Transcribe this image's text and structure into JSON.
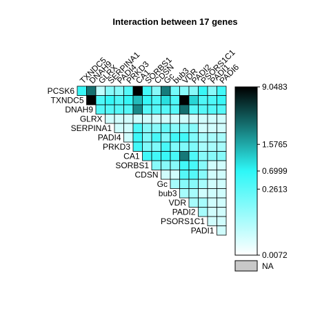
{
  "chart_data": {
    "type": "heatmap",
    "title": "Interaction between 17 genes",
    "row_labels": [
      "PCSK6",
      "TXNDC5",
      "DNAH9",
      "GLRX",
      "SERPINA1",
      "PADI4",
      "PRKD3",
      "CA1",
      "SORBS1",
      "CDSN",
      "Gc",
      "bub3",
      "VDR",
      "PADI2",
      "PSORS1C1",
      "PADI1"
    ],
    "col_labels": [
      "TXNDC5",
      "DNAH9",
      "GLRX",
      "SERPINA1",
      "PADI4",
      "PRKD3",
      "CA1",
      "SORBS1",
      "CDSN",
      "Gc",
      "bub3",
      "VDR",
      "PADI2",
      "PSORS1C1",
      "PADI1",
      "PADI6"
    ],
    "matrix": [
      [
        0.55,
        2.8,
        0.03,
        0.1,
        0.1,
        0.3,
        9.0,
        0.45,
        0.1,
        2.5,
        0.15,
        0.1,
        0.1,
        0.55,
        0.1,
        0.45
      ],
      [
        null,
        9.0,
        0.35,
        0.6,
        0.35,
        0.6,
        1.3,
        0.6,
        0.35,
        0.9,
        0.35,
        9.0,
        1.0,
        0.35,
        0.35,
        0.55
      ],
      [
        null,
        null,
        0.3,
        0.3,
        0.3,
        0.3,
        2.2,
        0.3,
        0.3,
        0.3,
        0.3,
        2.9,
        0.3,
        0.3,
        0.3,
        0.3
      ],
      [
        null,
        null,
        null,
        0.02,
        0.02,
        0.02,
        0.02,
        0.02,
        0.02,
        0.02,
        0.02,
        0.02,
        0.02,
        0.02,
        0.02,
        0.02
      ],
      [
        null,
        null,
        null,
        null,
        0.02,
        0.02,
        0.35,
        0.1,
        0.1,
        0.2,
        0.1,
        0.1,
        0.1,
        0.02,
        0.02,
        0.02
      ],
      [
        null,
        null,
        null,
        null,
        null,
        0.02,
        0.5,
        0.12,
        0.4,
        0.12,
        0.45,
        0.45,
        0.12,
        0.05,
        0.05,
        0.05
      ],
      [
        null,
        null,
        null,
        null,
        null,
        null,
        0.45,
        0.12,
        0.12,
        0.4,
        0.12,
        0.12,
        0.12,
        0.05,
        0.05,
        0.05
      ],
      [
        null,
        null,
        null,
        null,
        null,
        null,
        null,
        0.45,
        0.45,
        0.55,
        0.4,
        2.6,
        0.35,
        0.1,
        0.1,
        0.1
      ],
      [
        null,
        null,
        null,
        null,
        null,
        null,
        null,
        null,
        0.1,
        0.1,
        0.1,
        0.45,
        0.4,
        0.1,
        0.02,
        0.02
      ],
      [
        null,
        null,
        null,
        null,
        null,
        null,
        null,
        null,
        null,
        0.02,
        0.02,
        0.3,
        0.3,
        0.1,
        0.02,
        0.02
      ],
      [
        null,
        null,
        null,
        null,
        null,
        null,
        null,
        null,
        null,
        null,
        0.05,
        0.1,
        0.1,
        0.05,
        0.02,
        0.02
      ],
      [
        null,
        null,
        null,
        null,
        null,
        null,
        null,
        null,
        null,
        null,
        null,
        0.05,
        0.05,
        0.02,
        0.02,
        0.02
      ],
      [
        null,
        null,
        null,
        null,
        null,
        null,
        null,
        null,
        null,
        null,
        null,
        null,
        0.05,
        0.05,
        0.02,
        0.02
      ],
      [
        null,
        null,
        null,
        null,
        null,
        null,
        null,
        null,
        null,
        null,
        null,
        null,
        null,
        0.05,
        0.02,
        0.02
      ],
      [
        null,
        null,
        null,
        null,
        null,
        null,
        null,
        null,
        null,
        null,
        null,
        null,
        null,
        null,
        0.02,
        0.02
      ],
      [
        null,
        null,
        null,
        null,
        null,
        null,
        null,
        null,
        null,
        null,
        null,
        null,
        null,
        null,
        null,
        0.02
      ]
    ],
    "colorbar": {
      "ticks": [
        9.0483,
        1.5765,
        0.6999,
        0.2613,
        0.0072
      ],
      "tick_labels": [
        "9.0483",
        "1.5765",
        "0.6999",
        "0.2613",
        "0.0072"
      ],
      "colors": [
        "#ffffff",
        "#2ef7f7",
        "#000000"
      ],
      "na_label": "NA",
      "na_color": "#c8c8c8"
    }
  }
}
